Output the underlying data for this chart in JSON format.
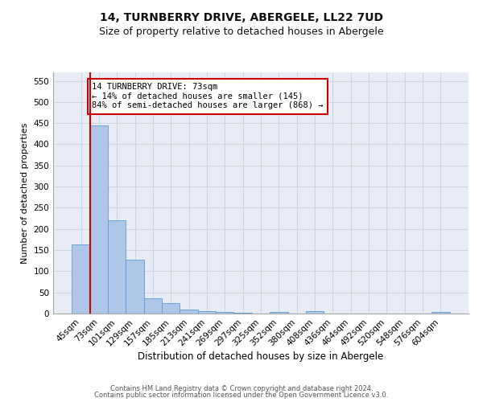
{
  "title_line1": "14, TURNBERRY DRIVE, ABERGELE, LL22 7UD",
  "title_line2": "Size of property relative to detached houses in Abergele",
  "xlabel": "Distribution of detached houses by size in Abergele",
  "ylabel": "Number of detached properties",
  "categories": [
    "45sqm",
    "73sqm",
    "101sqm",
    "129sqm",
    "157sqm",
    "185sqm",
    "213sqm",
    "241sqm",
    "269sqm",
    "297sqm",
    "325sqm",
    "352sqm",
    "380sqm",
    "408sqm",
    "436sqm",
    "464sqm",
    "492sqm",
    "520sqm",
    "548sqm",
    "576sqm",
    "604sqm"
  ],
  "values": [
    163,
    445,
    220,
    128,
    36,
    25,
    10,
    5,
    3,
    2,
    0,
    3,
    0,
    5,
    0,
    0,
    0,
    0,
    0,
    0,
    3
  ],
  "bar_color": "#aec6e8",
  "bar_edge_color": "#5b9bd5",
  "property_line_index": 1,
  "annotation_text": "14 TURNBERRY DRIVE: 73sqm\n← 14% of detached houses are smaller (145)\n84% of semi-detached houses are larger (868) →",
  "annotation_box_color": "#ffffff",
  "annotation_box_edge": "#cc0000",
  "property_line_color": "#cc0000",
  "ylim": [
    0,
    570
  ],
  "yticks": [
    0,
    50,
    100,
    150,
    200,
    250,
    300,
    350,
    400,
    450,
    500,
    550
  ],
  "grid_color": "#cdd5e3",
  "background_color": "#e8edf5",
  "footer_line1": "Contains HM Land Registry data © Crown copyright and database right 2024.",
  "footer_line2": "Contains public sector information licensed under the Open Government Licence v3.0.",
  "title_fontsize": 10,
  "subtitle_fontsize": 9,
  "tick_fontsize": 7.5,
  "xlabel_fontsize": 8.5,
  "ylabel_fontsize": 8,
  "annotation_fontsize": 7.5,
  "footer_fontsize": 6
}
